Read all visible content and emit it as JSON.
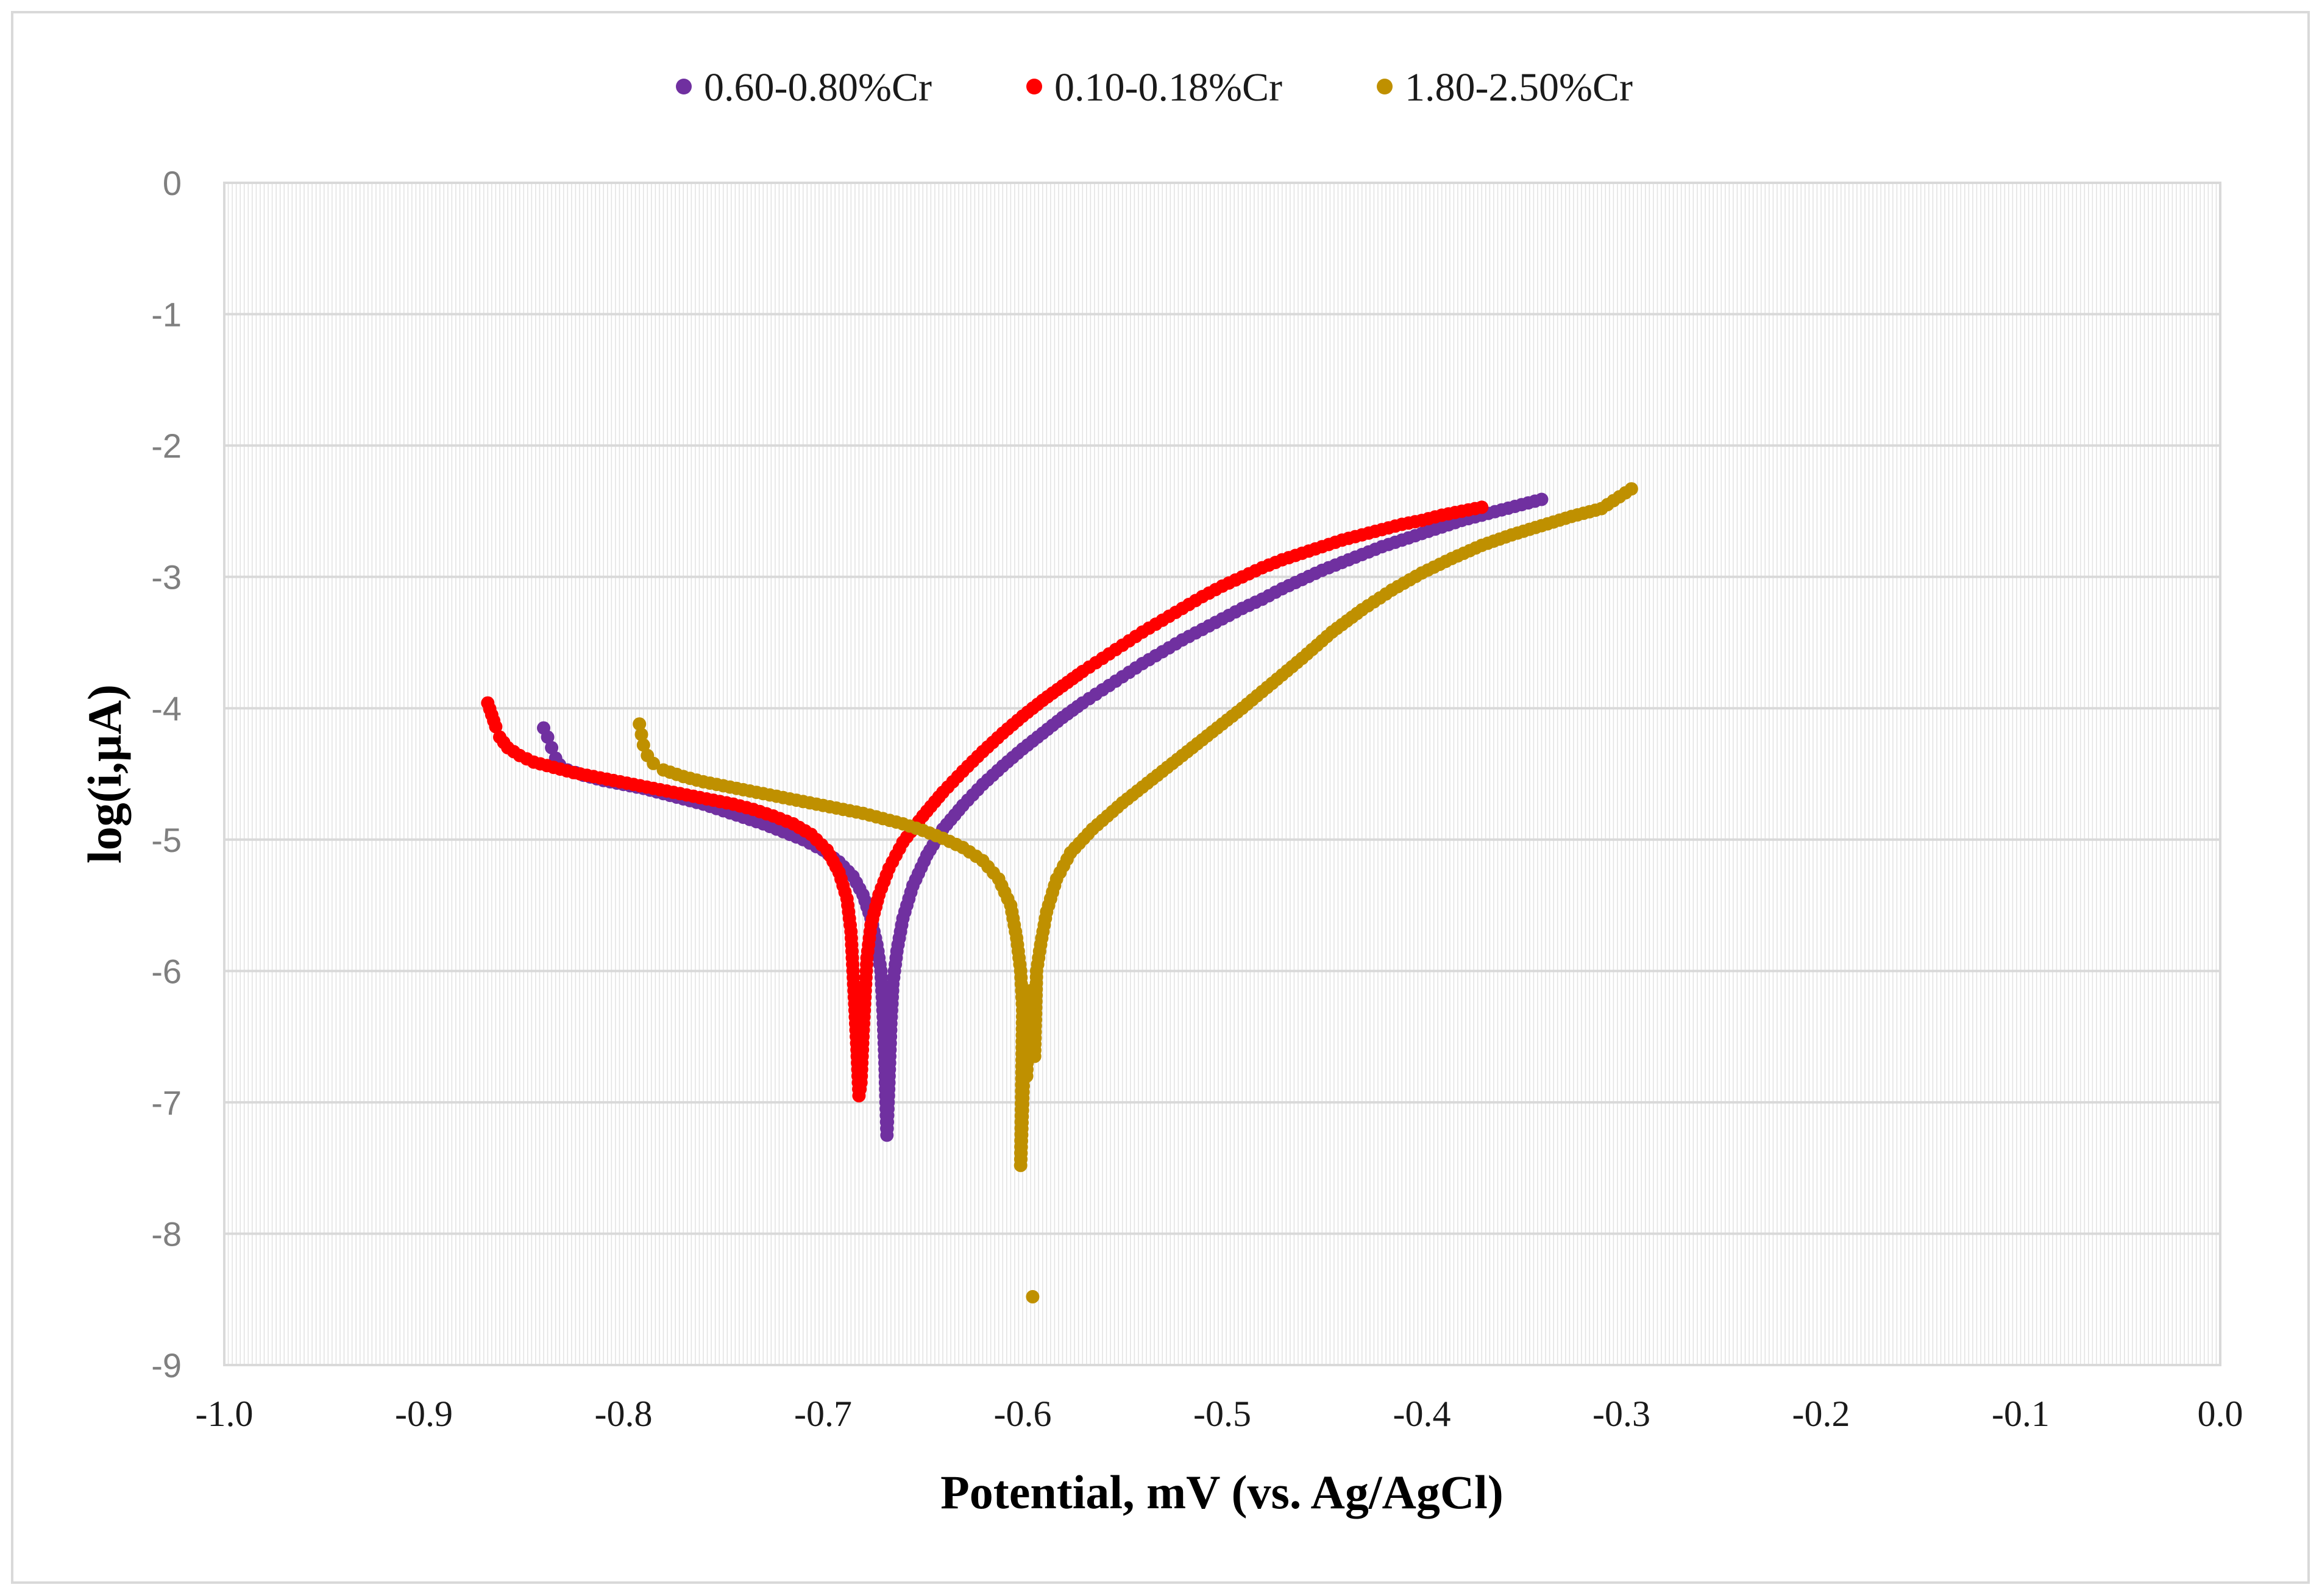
{
  "chart_data": {
    "type": "scatter",
    "title": "",
    "xlabel": "Potential, mV (vs. Ag/AgCl)",
    "ylabel": "log(i,µA)",
    "xlim": [
      -1.0,
      0.0
    ],
    "ylim": [
      -9,
      0
    ],
    "x_ticks": [
      -1.0,
      -0.9,
      -0.8,
      -0.7,
      -0.6,
      -0.5,
      -0.4,
      -0.3,
      -0.2,
      -0.1,
      0.0
    ],
    "x_tick_labels": [
      "-1.0",
      "-0.9",
      "-0.8",
      "-0.7",
      "-0.6",
      "-0.5",
      "-0.4",
      "-0.3",
      "-0.2",
      "-0.1",
      "0.0"
    ],
    "y_ticks": [
      0,
      -1,
      -2,
      -3,
      -4,
      -5,
      -6,
      -7,
      -8,
      -9
    ],
    "y_tick_labels": [
      "0",
      "-1",
      "-2",
      "-3",
      "-4",
      "-5",
      "-6",
      "-7",
      "-8",
      "-9"
    ],
    "grid": true,
    "legend_position": "top-center",
    "series": [
      {
        "name": "0.60-0.80%Cr",
        "color": "#7030a0",
        "points": [
          [
            -0.84,
            -4.15
          ],
          [
            -0.838,
            -4.22
          ],
          [
            -0.836,
            -4.3
          ],
          [
            -0.834,
            -4.38
          ],
          [
            -0.832,
            -4.43
          ],
          [
            -0.828,
            -4.47
          ],
          [
            -0.82,
            -4.51
          ],
          [
            -0.81,
            -4.55
          ],
          [
            -0.8,
            -4.58
          ],
          [
            -0.79,
            -4.61
          ],
          [
            -0.78,
            -4.65
          ],
          [
            -0.77,
            -4.69
          ],
          [
            -0.76,
            -4.73
          ],
          [
            -0.75,
            -4.78
          ],
          [
            -0.74,
            -4.83
          ],
          [
            -0.73,
            -4.88
          ],
          [
            -0.72,
            -4.94
          ],
          [
            -0.71,
            -5.0
          ],
          [
            -0.7,
            -5.08
          ],
          [
            -0.692,
            -5.17
          ],
          [
            -0.685,
            -5.28
          ],
          [
            -0.68,
            -5.42
          ],
          [
            -0.676,
            -5.6
          ],
          [
            -0.673,
            -5.8
          ],
          [
            -0.671,
            -6.0
          ],
          [
            -0.67,
            -6.3
          ],
          [
            -0.669,
            -6.7
          ],
          [
            -0.668,
            -7.25
          ],
          [
            -0.667,
            -6.85
          ],
          [
            -0.666,
            -6.4
          ],
          [
            -0.665,
            -6.1
          ],
          [
            -0.663,
            -5.85
          ],
          [
            -0.66,
            -5.6
          ],
          [
            -0.655,
            -5.35
          ],
          [
            -0.648,
            -5.12
          ],
          [
            -0.64,
            -4.92
          ],
          [
            -0.63,
            -4.74
          ],
          [
            -0.62,
            -4.58
          ],
          [
            -0.61,
            -4.44
          ],
          [
            -0.6,
            -4.31
          ],
          [
            -0.59,
            -4.19
          ],
          [
            -0.58,
            -4.07
          ],
          [
            -0.57,
            -3.96
          ],
          [
            -0.56,
            -3.86
          ],
          [
            -0.55,
            -3.76
          ],
          [
            -0.54,
            -3.66
          ],
          [
            -0.53,
            -3.57
          ],
          [
            -0.52,
            -3.48
          ],
          [
            -0.51,
            -3.4
          ],
          [
            -0.5,
            -3.32
          ],
          [
            -0.49,
            -3.24
          ],
          [
            -0.48,
            -3.17
          ],
          [
            -0.47,
            -3.09
          ],
          [
            -0.46,
            -3.02
          ],
          [
            -0.45,
            -2.95
          ],
          [
            -0.44,
            -2.89
          ],
          [
            -0.43,
            -2.83
          ],
          [
            -0.42,
            -2.77
          ],
          [
            -0.41,
            -2.72
          ],
          [
            -0.4,
            -2.67
          ],
          [
            -0.39,
            -2.62
          ],
          [
            -0.38,
            -2.57
          ],
          [
            -0.37,
            -2.53
          ],
          [
            -0.36,
            -2.49
          ],
          [
            -0.35,
            -2.45
          ],
          [
            -0.34,
            -2.41
          ]
        ]
      },
      {
        "name": "0.10-0.18%Cr",
        "color": "#ff0000",
        "points": [
          [
            -0.868,
            -3.96
          ],
          [
            -0.866,
            -4.05
          ],
          [
            -0.864,
            -4.14
          ],
          [
            -0.862,
            -4.22
          ],
          [
            -0.858,
            -4.3
          ],
          [
            -0.852,
            -4.36
          ],
          [
            -0.845,
            -4.41
          ],
          [
            -0.835,
            -4.45
          ],
          [
            -0.825,
            -4.49
          ],
          [
            -0.815,
            -4.52
          ],
          [
            -0.805,
            -4.55
          ],
          [
            -0.795,
            -4.58
          ],
          [
            -0.785,
            -4.61
          ],
          [
            -0.775,
            -4.64
          ],
          [
            -0.765,
            -4.67
          ],
          [
            -0.755,
            -4.7
          ],
          [
            -0.745,
            -4.73
          ],
          [
            -0.735,
            -4.77
          ],
          [
            -0.725,
            -4.82
          ],
          [
            -0.715,
            -4.88
          ],
          [
            -0.706,
            -4.96
          ],
          [
            -0.698,
            -5.08
          ],
          [
            -0.692,
            -5.25
          ],
          [
            -0.688,
            -5.45
          ],
          [
            -0.686,
            -5.7
          ],
          [
            -0.685,
            -6.0
          ],
          [
            -0.684,
            -6.3
          ],
          [
            -0.683,
            -6.6
          ],
          [
            -0.682,
            -6.95
          ],
          [
            -0.681,
            -6.85
          ],
          [
            -0.68,
            -6.5
          ],
          [
            -0.679,
            -6.2
          ],
          [
            -0.678,
            -5.9
          ],
          [
            -0.676,
            -5.65
          ],
          [
            -0.672,
            -5.42
          ],
          [
            -0.667,
            -5.22
          ],
          [
            -0.66,
            -5.02
          ],
          [
            -0.65,
            -4.82
          ],
          [
            -0.64,
            -4.64
          ],
          [
            -0.63,
            -4.48
          ],
          [
            -0.62,
            -4.33
          ],
          [
            -0.61,
            -4.19
          ],
          [
            -0.6,
            -4.06
          ],
          [
            -0.59,
            -3.94
          ],
          [
            -0.58,
            -3.83
          ],
          [
            -0.57,
            -3.72
          ],
          [
            -0.56,
            -3.62
          ],
          [
            -0.55,
            -3.52
          ],
          [
            -0.54,
            -3.42
          ],
          [
            -0.53,
            -3.33
          ],
          [
            -0.52,
            -3.24
          ],
          [
            -0.51,
            -3.15
          ],
          [
            -0.5,
            -3.07
          ],
          [
            -0.49,
            -3.0
          ],
          [
            -0.48,
            -2.93
          ],
          [
            -0.47,
            -2.87
          ],
          [
            -0.46,
            -2.82
          ],
          [
            -0.45,
            -2.77
          ],
          [
            -0.44,
            -2.72
          ],
          [
            -0.43,
            -2.68
          ],
          [
            -0.42,
            -2.64
          ],
          [
            -0.41,
            -2.6
          ],
          [
            -0.4,
            -2.57
          ],
          [
            -0.39,
            -2.53
          ],
          [
            -0.38,
            -2.5
          ],
          [
            -0.37,
            -2.47
          ]
        ]
      },
      {
        "name": "1.80-2.50%Cr",
        "color": "#bf9000",
        "points": [
          [
            -0.792,
            -4.12
          ],
          [
            -0.791,
            -4.2
          ],
          [
            -0.79,
            -4.28
          ],
          [
            -0.788,
            -4.36
          ],
          [
            -0.785,
            -4.42
          ],
          [
            -0.78,
            -4.47
          ],
          [
            -0.77,
            -4.52
          ],
          [
            -0.76,
            -4.56
          ],
          [
            -0.75,
            -4.59
          ],
          [
            -0.74,
            -4.62
          ],
          [
            -0.73,
            -4.65
          ],
          [
            -0.72,
            -4.68
          ],
          [
            -0.71,
            -4.71
          ],
          [
            -0.7,
            -4.74
          ],
          [
            -0.69,
            -4.77
          ],
          [
            -0.68,
            -4.8
          ],
          [
            -0.67,
            -4.84
          ],
          [
            -0.66,
            -4.88
          ],
          [
            -0.65,
            -4.93
          ],
          [
            -0.64,
            -4.99
          ],
          [
            -0.63,
            -5.06
          ],
          [
            -0.62,
            -5.16
          ],
          [
            -0.612,
            -5.3
          ],
          [
            -0.606,
            -5.5
          ],
          [
            -0.603,
            -5.75
          ],
          [
            -0.601,
            -6.0
          ],
          [
            -0.6,
            -6.3
          ],
          [
            -0.601,
            -7.48
          ],
          [
            -0.599,
            -6.55
          ],
          [
            -0.598,
            -6.8
          ],
          [
            -0.597,
            -6.4
          ],
          [
            -0.595,
            -8.48
          ],
          [
            -0.596,
            -6.15
          ],
          [
            -0.594,
            -6.65
          ],
          [
            -0.593,
            -6.0
          ],
          [
            -0.591,
            -5.8
          ],
          [
            -0.588,
            -5.55
          ],
          [
            -0.583,
            -5.3
          ],
          [
            -0.576,
            -5.1
          ],
          [
            -0.565,
            -4.92
          ],
          [
            -0.55,
            -4.72
          ],
          [
            -0.535,
            -4.54
          ],
          [
            -0.52,
            -4.36
          ],
          [
            -0.505,
            -4.18
          ],
          [
            -0.49,
            -4.0
          ],
          [
            -0.475,
            -3.81
          ],
          [
            -0.46,
            -3.62
          ],
          [
            -0.445,
            -3.42
          ],
          [
            -0.43,
            -3.25
          ],
          [
            -0.415,
            -3.1
          ],
          [
            -0.4,
            -2.97
          ],
          [
            -0.385,
            -2.86
          ],
          [
            -0.37,
            -2.76
          ],
          [
            -0.355,
            -2.68
          ],
          [
            -0.34,
            -2.61
          ],
          [
            -0.325,
            -2.54
          ],
          [
            -0.31,
            -2.48
          ],
          [
            -0.295,
            -2.33
          ]
        ]
      }
    ]
  }
}
